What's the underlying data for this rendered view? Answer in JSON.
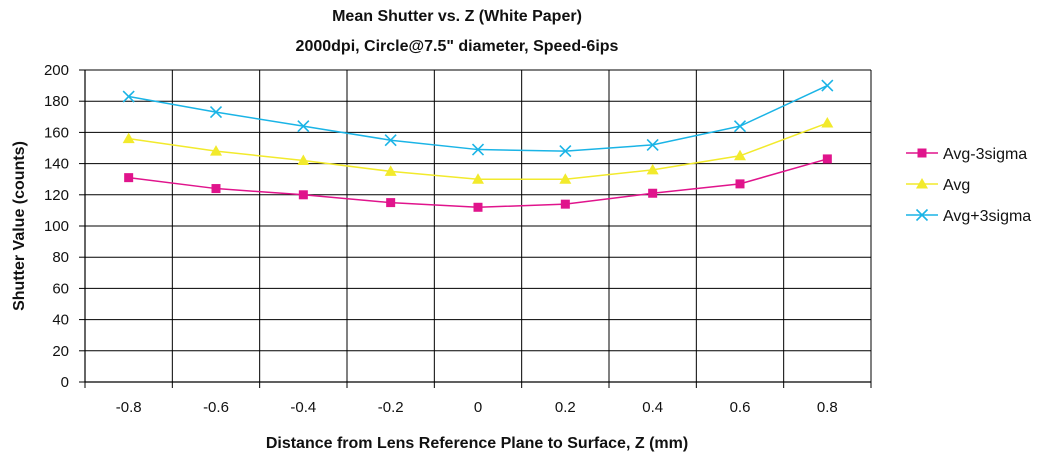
{
  "chart_data": {
    "type": "line",
    "title": "Mean Shutter vs. Z (White Paper)",
    "subtitle": "2000dpi, Circle@7.5\" diameter, Speed-6ips",
    "xlabel": "Distance from Lens Reference Plane to Surface, Z (mm)",
    "ylabel": "Shutter Value (counts)",
    "categories": [
      "-0.8",
      "-0.6",
      "-0.4",
      "-0.2",
      "0",
      "0.2",
      "0.4",
      "0.6",
      "0.8"
    ],
    "yticks": [
      "0",
      "20",
      "40",
      "60",
      "80",
      "100",
      "120",
      "140",
      "160",
      "180",
      "200"
    ],
    "ylim": [
      0,
      200
    ],
    "grid": true,
    "legend_position": "right",
    "series": [
      {
        "name": "Avg-3sigma",
        "color": "#e0148c",
        "marker": "square",
        "values": [
          131,
          124,
          120,
          115,
          112,
          114,
          121,
          127,
          143
        ]
      },
      {
        "name": "Avg",
        "color": "#f2ea2c",
        "marker": "triangle",
        "values": [
          156,
          148,
          142,
          135,
          130,
          130,
          136,
          145,
          166
        ]
      },
      {
        "name": "Avg+3sigma",
        "color": "#1ab4e6",
        "marker": "x",
        "values": [
          183,
          173,
          164,
          155,
          149,
          148,
          152,
          164,
          190
        ]
      }
    ]
  }
}
